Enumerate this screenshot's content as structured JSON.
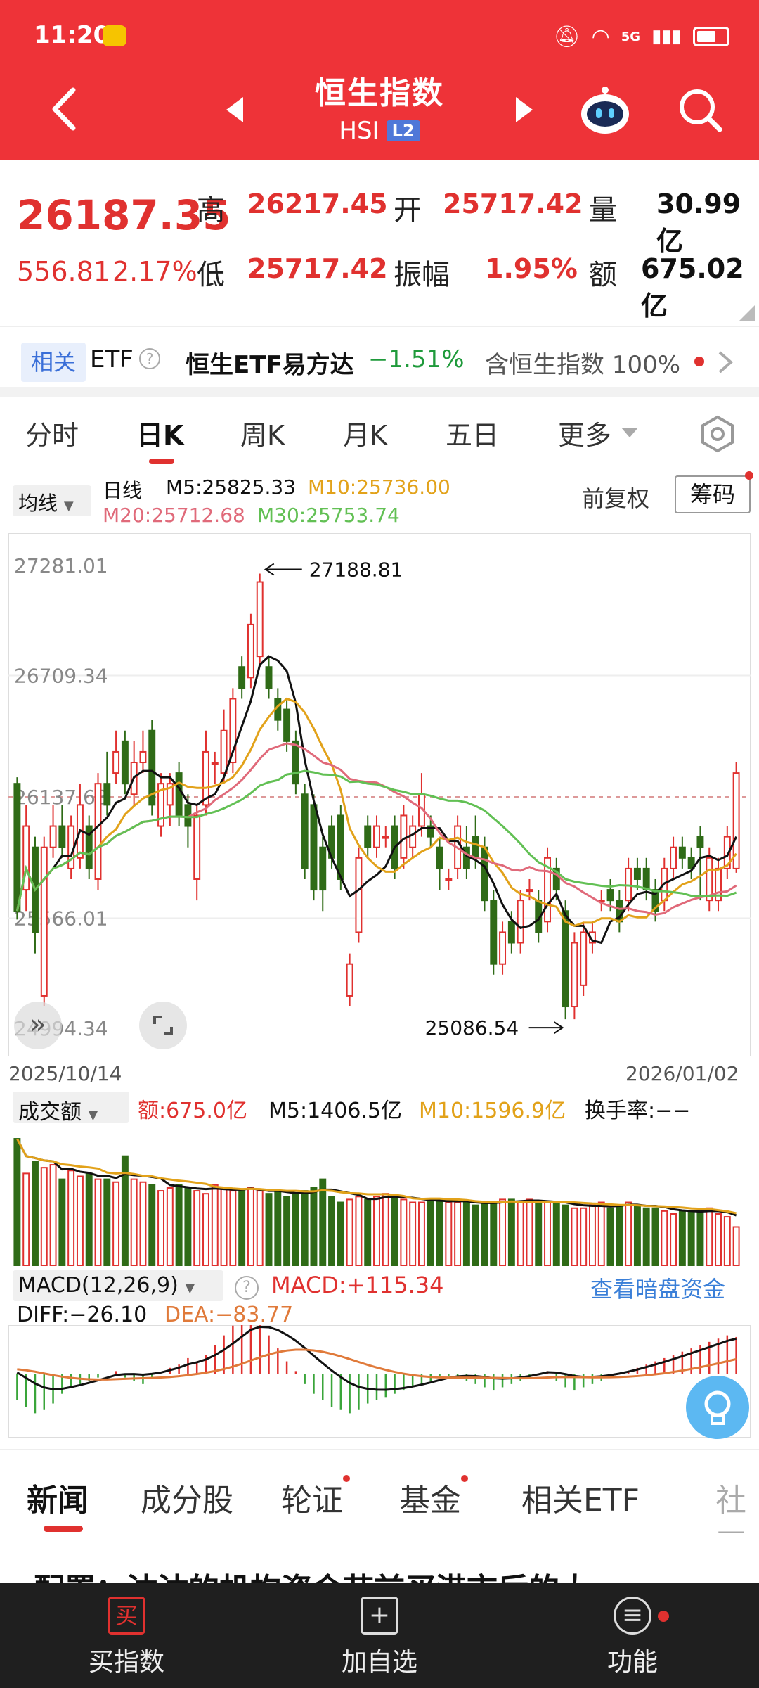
{
  "status_bar": {
    "time": "11:20",
    "network": "5G"
  },
  "header": {
    "title": "恒生指数",
    "subtitle": "HSI",
    "badge": "L2"
  },
  "quote": {
    "price": "26187.35",
    "change": "556.81",
    "change_pct": "2.17%",
    "high_label": "高",
    "high": "26217.45",
    "open_label": "开",
    "open": "25717.42",
    "volume_label": "量",
    "volume": "30.99亿",
    "low_label": "低",
    "low": "25717.42",
    "amplitude_label": "振幅",
    "amplitude": "1.95%",
    "amount_label": "额",
    "amount": "675.02亿"
  },
  "related": {
    "chip": "相关",
    "etf_label": "ETF",
    "etf_name": "恒生ETF易方达",
    "etf_change": "−1.51%",
    "etf_hold": "含恒生指数 100%"
  },
  "period_tabs": [
    "分时",
    "日K",
    "周K",
    "月K",
    "五日",
    "更多"
  ],
  "ma": {
    "select": "均线",
    "line_type": "日线",
    "m5": "M5:25825.33",
    "m10": "M10:25736.00",
    "m20": "M20:25712.68",
    "m30": "M30:25753.74",
    "adjust": "前复权",
    "chips_button": "筹码"
  },
  "colors": {
    "up": "#e0312f",
    "down": "#2f6b17",
    "m5": "#111111",
    "m10": "#e2a21a",
    "m20": "#e06a7a",
    "m30": "#62c054"
  },
  "chart_data": [
    {
      "type": "candlestick",
      "y_ticks": [
        "27281.01",
        "26709.34",
        "26137.68",
        "25566.01",
        "24994.34"
      ],
      "high_label": "27188.81",
      "low_label": "25086.54",
      "x_start": "2025/10/14",
      "x_end": "2026/01/02",
      "ylim": [
        24994.34,
        27281.01
      ],
      "candles": [
        [
          26200,
          25600,
          26230,
          25560
        ],
        [
          25700,
          26000,
          26100,
          25600
        ],
        [
          25900,
          25500,
          25950,
          25400
        ],
        [
          25200,
          25900,
          25950,
          25150
        ],
        [
          25900,
          26000,
          26100,
          25850
        ],
        [
          26000,
          25900,
          26100,
          25850
        ],
        [
          25800,
          26000,
          26050,
          25750
        ],
        [
          25850,
          26100,
          26200,
          25800
        ],
        [
          26000,
          25800,
          26050,
          25750
        ],
        [
          25750,
          26200,
          26250,
          25700
        ],
        [
          26200,
          26100,
          26350,
          26050
        ],
        [
          26250,
          26350,
          26450,
          26200
        ],
        [
          26400,
          26200,
          26450,
          26150
        ],
        [
          26150,
          26300,
          26400,
          26100
        ],
        [
          26300,
          26350,
          26450,
          26250
        ],
        [
          26450,
          26100,
          26500,
          26050
        ],
        [
          26000,
          26200,
          26250,
          25950
        ],
        [
          26100,
          26200,
          26250,
          26000
        ],
        [
          26250,
          26050,
          26300,
          26000
        ],
        [
          26100,
          26000,
          26150,
          25900
        ],
        [
          25750,
          26050,
          26100,
          25650
        ],
        [
          26100,
          26350,
          26450,
          26050
        ],
        [
          26300,
          26300,
          26350,
          26200
        ],
        [
          26250,
          26450,
          26550,
          26200
        ],
        [
          26300,
          26600,
          26650,
          26250
        ],
        [
          26750,
          26650,
          26800,
          26600
        ],
        [
          26700,
          26950,
          27000,
          26650
        ],
        [
          26800,
          27150,
          27190,
          26750
        ],
        [
          26750,
          26650,
          26800,
          26600
        ],
        [
          26600,
          26500,
          26650,
          26450
        ],
        [
          26550,
          26400,
          26600,
          26350
        ],
        [
          26400,
          26200,
          26450,
          26150
        ],
        [
          26150,
          25800,
          26200,
          25750
        ],
        [
          26100,
          25700,
          26150,
          25650
        ],
        [
          25900,
          25700,
          25950,
          25600
        ],
        [
          26000,
          25850,
          26050,
          25800
        ],
        [
          26050,
          25750,
          26100,
          25700
        ],
        [
          25200,
          25350,
          25400,
          25150
        ],
        [
          25500,
          25850,
          25900,
          25450
        ],
        [
          26000,
          25900,
          26050,
          25850
        ],
        [
          25900,
          26000,
          26050,
          25850
        ],
        [
          25950,
          25950,
          26000,
          25900
        ],
        [
          26000,
          25800,
          26050,
          25750
        ],
        [
          25850,
          26050,
          26100,
          25800
        ],
        [
          25900,
          26000,
          26050,
          25850
        ],
        [
          26000,
          26150,
          26250,
          25950
        ],
        [
          26000,
          25950,
          26050,
          25900
        ],
        [
          25900,
          25800,
          25950,
          25700
        ],
        [
          25750,
          25750,
          25800,
          25700
        ],
        [
          25800,
          26000,
          26050,
          25750
        ],
        [
          25900,
          25800,
          26000,
          25750
        ],
        [
          25950,
          25850,
          26050,
          25800
        ],
        [
          25900,
          25650,
          25950,
          25600
        ],
        [
          25650,
          25350,
          25700,
          25300
        ],
        [
          25350,
          25500,
          25550,
          25300
        ],
        [
          25550,
          25450,
          25600,
          25400
        ],
        [
          25450,
          25650,
          25700,
          25400
        ],
        [
          25700,
          25700,
          25750,
          25650
        ],
        [
          25650,
          25500,
          25700,
          25450
        ],
        [
          25550,
          25850,
          25900,
          25500
        ],
        [
          25800,
          25700,
          25850,
          25650
        ],
        [
          25600,
          25150,
          25650,
          25090
        ],
        [
          25150,
          25450,
          25500,
          25090
        ],
        [
          25250,
          25500,
          25550,
          25200
        ],
        [
          25450,
          25500,
          25550,
          25400
        ],
        [
          25650,
          25650,
          25700,
          25600
        ],
        [
          25700,
          25650,
          25750,
          25600
        ],
        [
          25650,
          25550,
          25700,
          25500
        ],
        [
          25650,
          25800,
          25850,
          25600
        ],
        [
          25800,
          25750,
          25850,
          25700
        ],
        [
          25800,
          25700,
          25850,
          25650
        ],
        [
          25700,
          25600,
          25750,
          25550
        ],
        [
          25650,
          25800,
          25850,
          25600
        ],
        [
          25800,
          25900,
          25950,
          25750
        ],
        [
          25900,
          25850,
          25950,
          25800
        ],
        [
          25850,
          25800,
          25900,
          25750
        ],
        [
          25950,
          25900,
          26000,
          25650
        ],
        [
          25650,
          25850,
          25900,
          25600
        ],
        [
          25650,
          25800,
          25850,
          25600
        ],
        [
          25800,
          25950,
          26000,
          25750
        ],
        [
          25800,
          26250,
          26300,
          25780
        ]
      ]
    },
    {
      "type": "bar",
      "label": "成交额",
      "amount": "额:675.0亿",
      "m5": "M5:1406.5亿",
      "m10": "M10:1596.9亿",
      "turnover": "换手率:−−",
      "values": [
        2200,
        1600,
        1800,
        1700,
        1750,
        1500,
        1650,
        1550,
        1600,
        1500,
        1500,
        1450,
        1900,
        1500,
        1450,
        1400,
        1300,
        1350,
        1400,
        1350,
        1300,
        1250,
        1400,
        1350,
        1300,
        1300,
        1350,
        1300,
        1250,
        1300,
        1200,
        1250,
        1300,
        1350,
        1500,
        1200,
        1100,
        1150,
        1200,
        1150,
        1200,
        1250,
        1200,
        1150,
        1100,
        1100,
        1150,
        1150,
        1100,
        1100,
        1100,
        1050,
        1100,
        1100,
        1150,
        1150,
        1100,
        1150,
        1100,
        1100,
        1100,
        1050,
        1000,
        1000,
        1050,
        1100,
        1000,
        1050,
        1100,
        1050,
        1000,
        1000,
        950,
        900,
        950,
        950,
        950,
        1000,
        900,
        850,
        675
      ]
    },
    {
      "type": "macd",
      "label": "MACD(12,26,9)",
      "macd": "MACD:+115.34",
      "diff": "DIFF:−26.10",
      "dea": "DEA:−83.77",
      "link": "查看暗盘资金",
      "hist": [
        -80,
        -100,
        -120,
        -110,
        -90,
        -60,
        -40,
        -30,
        -20,
        -10,
        0,
        10,
        -10,
        -20,
        -30,
        -10,
        0,
        20,
        30,
        50,
        40,
        60,
        90,
        120,
        150,
        180,
        200,
        160,
        120,
        80,
        40,
        10,
        -30,
        -60,
        -80,
        -100,
        -110,
        -120,
        -110,
        -90,
        -80,
        -70,
        -60,
        -50,
        -40,
        -30,
        -20,
        -10,
        -5,
        -10,
        -20,
        -30,
        -40,
        -50,
        -40,
        -30,
        -20,
        -10,
        0,
        10,
        -20,
        -40,
        -50,
        -40,
        -30,
        -20,
        -10,
        0,
        10,
        20,
        30,
        40,
        50,
        60,
        70,
        80,
        90,
        100,
        110,
        120,
        115
      ]
    }
  ],
  "news_tabs": [
    "新闻",
    "成分股",
    "轮证",
    "基金",
    "相关ETF",
    "社区"
  ],
  "news_headline": "配置：沽沽的机构资金节前买港市后的大",
  "bottom_bar": {
    "buy": "买指数",
    "buy_icon": "买",
    "watch": "加自选",
    "func": "功能"
  }
}
